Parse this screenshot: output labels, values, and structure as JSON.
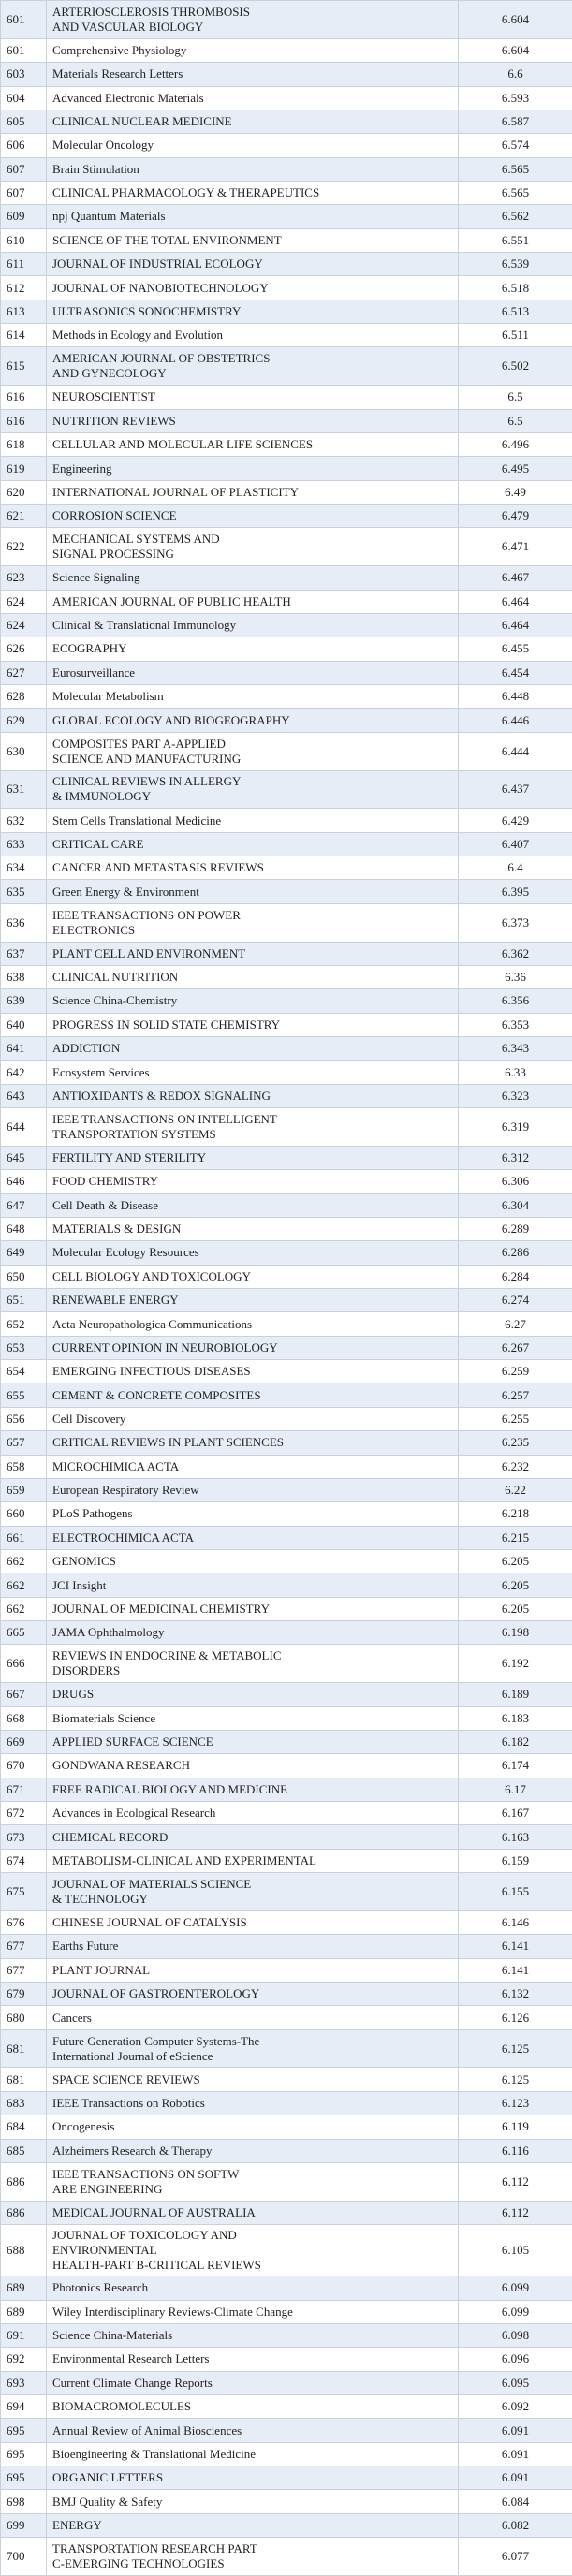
{
  "rows": [
    {
      "rank": "601",
      "name": "ARTERIOSCLEROSIS THROMBOSIS\nAND VASCULAR BIOLOGY",
      "if": "6.604"
    },
    {
      "rank": "601",
      "name": "Comprehensive Physiology",
      "if": "6.604"
    },
    {
      "rank": "603",
      "name": "Materials Research Letters",
      "if": "6.6"
    },
    {
      "rank": "604",
      "name": "Advanced Electronic Materials",
      "if": "6.593"
    },
    {
      "rank": "605",
      "name": "CLINICAL NUCLEAR MEDICINE",
      "if": "6.587"
    },
    {
      "rank": "606",
      "name": "Molecular Oncology",
      "if": "6.574"
    },
    {
      "rank": "607",
      "name": "Brain Stimulation",
      "if": "6.565"
    },
    {
      "rank": "607",
      "name": "CLINICAL PHARMACOLOGY & THERAPEUTICS",
      "if": "6.565"
    },
    {
      "rank": "609",
      "name": "npj Quantum Materials",
      "if": "6.562"
    },
    {
      "rank": "610",
      "name": "SCIENCE OF THE TOTAL ENVIRONMENT",
      "if": "6.551"
    },
    {
      "rank": "611",
      "name": "JOURNAL OF INDUSTRIAL ECOLOGY",
      "if": "6.539"
    },
    {
      "rank": "612",
      "name": "JOURNAL OF NANOBIOTECHNOLOGY",
      "if": "6.518"
    },
    {
      "rank": "613",
      "name": "ULTRASONICS SONOCHEMISTRY",
      "if": "6.513"
    },
    {
      "rank": "614",
      "name": "Methods in Ecology and Evolution",
      "if": "6.511"
    },
    {
      "rank": "615",
      "name": "AMERICAN JOURNAL OF OBSTETRICS\nAND GYNECOLOGY",
      "if": "6.502"
    },
    {
      "rank": "616",
      "name": "NEUROSCIENTIST",
      "if": "6.5"
    },
    {
      "rank": "616",
      "name": "NUTRITION REVIEWS",
      "if": "6.5"
    },
    {
      "rank": "618",
      "name": "CELLULAR AND MOLECULAR LIFE SCIENCES",
      "if": "6.496"
    },
    {
      "rank": "619",
      "name": "Engineering",
      "if": "6.495"
    },
    {
      "rank": "620",
      "name": "INTERNATIONAL JOURNAL OF PLASTICITY",
      "if": "6.49"
    },
    {
      "rank": "621",
      "name": "CORROSION SCIENCE",
      "if": "6.479"
    },
    {
      "rank": "622",
      "name": "MECHANICAL SYSTEMS AND\nSIGNAL PROCESSING",
      "if": "6.471"
    },
    {
      "rank": "623",
      "name": "Science Signaling",
      "if": "6.467"
    },
    {
      "rank": "624",
      "name": "AMERICAN JOURNAL OF PUBLIC HEALTH",
      "if": "6.464"
    },
    {
      "rank": "624",
      "name": "Clinical & Translational Immunology",
      "if": "6.464"
    },
    {
      "rank": "626",
      "name": "ECOGRAPHY",
      "if": "6.455"
    },
    {
      "rank": "627",
      "name": "Eurosurveillance",
      "if": "6.454"
    },
    {
      "rank": "628",
      "name": "Molecular Metabolism",
      "if": "6.448"
    },
    {
      "rank": "629",
      "name": "GLOBAL ECOLOGY AND BIOGEOGRAPHY",
      "if": "6.446"
    },
    {
      "rank": "630",
      "name": "COMPOSITES PART A-APPLIED\nSCIENCE AND MANUFACTURING",
      "if": "6.444"
    },
    {
      "rank": "631",
      "name": "CLINICAL REVIEWS IN ALLERGY\n& IMMUNOLOGY",
      "if": "6.437"
    },
    {
      "rank": "632",
      "name": "Stem Cells Translational Medicine",
      "if": "6.429"
    },
    {
      "rank": "633",
      "name": "CRITICAL CARE",
      "if": "6.407"
    },
    {
      "rank": "634",
      "name": "CANCER AND METASTASIS REVIEWS",
      "if": "6.4"
    },
    {
      "rank": "635",
      "name": "Green Energy & Environment",
      "if": "6.395"
    },
    {
      "rank": "636",
      "name": "IEEE TRANSACTIONS ON POWER\nELECTRONICS",
      "if": "6.373"
    },
    {
      "rank": "637",
      "name": "PLANT CELL AND ENVIRONMENT",
      "if": "6.362"
    },
    {
      "rank": "638",
      "name": "CLINICAL NUTRITION",
      "if": "6.36"
    },
    {
      "rank": "639",
      "name": "Science China-Chemistry",
      "if": "6.356"
    },
    {
      "rank": "640",
      "name": "PROGRESS IN SOLID STATE CHEMISTRY",
      "if": "6.353"
    },
    {
      "rank": "641",
      "name": "ADDICTION",
      "if": "6.343"
    },
    {
      "rank": "642",
      "name": "Ecosystem Services",
      "if": "6.33"
    },
    {
      "rank": "643",
      "name": "ANTIOXIDANTS & REDOX SIGNALING",
      "if": "6.323"
    },
    {
      "rank": "644",
      "name": "IEEE TRANSACTIONS ON INTELLIGENT\nTRANSPORTATION SYSTEMS",
      "if": "6.319"
    },
    {
      "rank": "645",
      "name": "FERTILITY AND STERILITY",
      "if": "6.312"
    },
    {
      "rank": "646",
      "name": "FOOD CHEMISTRY",
      "if": "6.306"
    },
    {
      "rank": "647",
      "name": "Cell Death & Disease",
      "if": "6.304"
    },
    {
      "rank": "648",
      "name": "MATERIALS & DESIGN",
      "if": "6.289"
    },
    {
      "rank": "649",
      "name": "Molecular Ecology Resources",
      "if": "6.286"
    },
    {
      "rank": "650",
      "name": "CELL BIOLOGY AND TOXICOLOGY",
      "if": "6.284"
    },
    {
      "rank": "651",
      "name": "RENEWABLE ENERGY",
      "if": "6.274"
    },
    {
      "rank": "652",
      "name": "Acta Neuropathologica Communications",
      "if": "6.27"
    },
    {
      "rank": "653",
      "name": "CURRENT OPINION IN NEUROBIOLOGY",
      "if": "6.267"
    },
    {
      "rank": "654",
      "name": "EMERGING INFECTIOUS DISEASES",
      "if": "6.259"
    },
    {
      "rank": "655",
      "name": "CEMENT & CONCRETE COMPOSITES",
      "if": "6.257"
    },
    {
      "rank": "656",
      "name": "Cell Discovery",
      "if": "6.255"
    },
    {
      "rank": "657",
      "name": "CRITICAL REVIEWS IN PLANT SCIENCES",
      "if": "6.235"
    },
    {
      "rank": "658",
      "name": "MICROCHIMICA ACTA",
      "if": "6.232"
    },
    {
      "rank": "659",
      "name": "European Respiratory Review",
      "if": "6.22"
    },
    {
      "rank": "660",
      "name": "PLoS Pathogens",
      "if": "6.218"
    },
    {
      "rank": "661",
      "name": "ELECTROCHIMICA ACTA",
      "if": "6.215"
    },
    {
      "rank": "662",
      "name": "GENOMICS",
      "if": "6.205"
    },
    {
      "rank": "662",
      "name": "JCI Insight",
      "if": "6.205"
    },
    {
      "rank": "662",
      "name": "JOURNAL OF MEDICINAL CHEMISTRY",
      "if": "6.205"
    },
    {
      "rank": "665",
      "name": "JAMA Ophthalmology",
      "if": "6.198"
    },
    {
      "rank": "666",
      "name": "REVIEWS IN ENDOCRINE & METABOLIC\nDISORDERS",
      "if": "6.192"
    },
    {
      "rank": "667",
      "name": "DRUGS",
      "if": "6.189"
    },
    {
      "rank": "668",
      "name": "Biomaterials Science",
      "if": "6.183"
    },
    {
      "rank": "669",
      "name": "APPLIED SURFACE SCIENCE",
      "if": "6.182"
    },
    {
      "rank": "670",
      "name": "GONDWANA RESEARCH",
      "if": "6.174"
    },
    {
      "rank": "671",
      "name": "FREE RADICAL BIOLOGY AND MEDICINE",
      "if": "6.17"
    },
    {
      "rank": "672",
      "name": "Advances in Ecological Research",
      "if": "6.167"
    },
    {
      "rank": "673",
      "name": "CHEMICAL RECORD",
      "if": "6.163"
    },
    {
      "rank": "674",
      "name": "METABOLISM-CLINICAL AND EXPERIMENTAL",
      "if": "6.159"
    },
    {
      "rank": "675",
      "name": "JOURNAL OF MATERIALS SCIENCE\n& TECHNOLOGY",
      "if": "6.155"
    },
    {
      "rank": "676",
      "name": "CHINESE JOURNAL OF CATALYSIS",
      "if": "6.146"
    },
    {
      "rank": "677",
      "name": "Earths Future",
      "if": "6.141"
    },
    {
      "rank": "677",
      "name": "PLANT JOURNAL",
      "if": "6.141"
    },
    {
      "rank": "679",
      "name": "JOURNAL OF GASTROENTEROLOGY",
      "if": "6.132"
    },
    {
      "rank": "680",
      "name": "Cancers",
      "if": "6.126"
    },
    {
      "rank": "681",
      "name": "Future Generation Computer Systems-The\nInternational Journal of eScience",
      "if": "6.125"
    },
    {
      "rank": "681",
      "name": "SPACE SCIENCE REVIEWS",
      "if": "6.125"
    },
    {
      "rank": "683",
      "name": "IEEE Transactions on Robotics",
      "if": "6.123"
    },
    {
      "rank": "684",
      "name": "Oncogenesis",
      "if": "6.119"
    },
    {
      "rank": "685",
      "name": "Alzheimers Research & Therapy",
      "if": "6.116"
    },
    {
      "rank": "686",
      "name": "IEEE TRANSACTIONS ON SOFTW\nARE ENGINEERING",
      "if": "6.112"
    },
    {
      "rank": "686",
      "name": "MEDICAL JOURNAL OF AUSTRALIA",
      "if": "6.112"
    },
    {
      "rank": "688",
      "name": "JOURNAL OF TOXICOLOGY AND\nENVIRONMENTAL\nHEALTH-PART B-CRITICAL REVIEWS",
      "if": "6.105"
    },
    {
      "rank": "689",
      "name": "Photonics Research",
      "if": "6.099"
    },
    {
      "rank": "689",
      "name": "Wiley Interdisciplinary Reviews-Climate Change",
      "if": "6.099"
    },
    {
      "rank": "691",
      "name": "Science China-Materials",
      "if": "6.098"
    },
    {
      "rank": "692",
      "name": "Environmental Research Letters",
      "if": "6.096"
    },
    {
      "rank": "693",
      "name": "Current Climate Change Reports",
      "if": "6.095"
    },
    {
      "rank": "694",
      "name": "BIOMACROMOLECULES",
      "if": "6.092"
    },
    {
      "rank": "695",
      "name": "Annual Review of Animal Biosciences",
      "if": "6.091"
    },
    {
      "rank": "695",
      "name": "Bioengineering & Translational Medicine",
      "if": "6.091"
    },
    {
      "rank": "695",
      "name": "ORGANIC LETTERS",
      "if": "6.091"
    },
    {
      "rank": "698",
      "name": "BMJ Quality & Safety",
      "if": "6.084"
    },
    {
      "rank": "699",
      "name": "ENERGY",
      "if": "6.082"
    },
    {
      "rank": "700",
      "name": "TRANSPORTATION RESEARCH PART\nC-EMERGING TECHNOLOGIES",
      "if": "6.077"
    }
  ]
}
